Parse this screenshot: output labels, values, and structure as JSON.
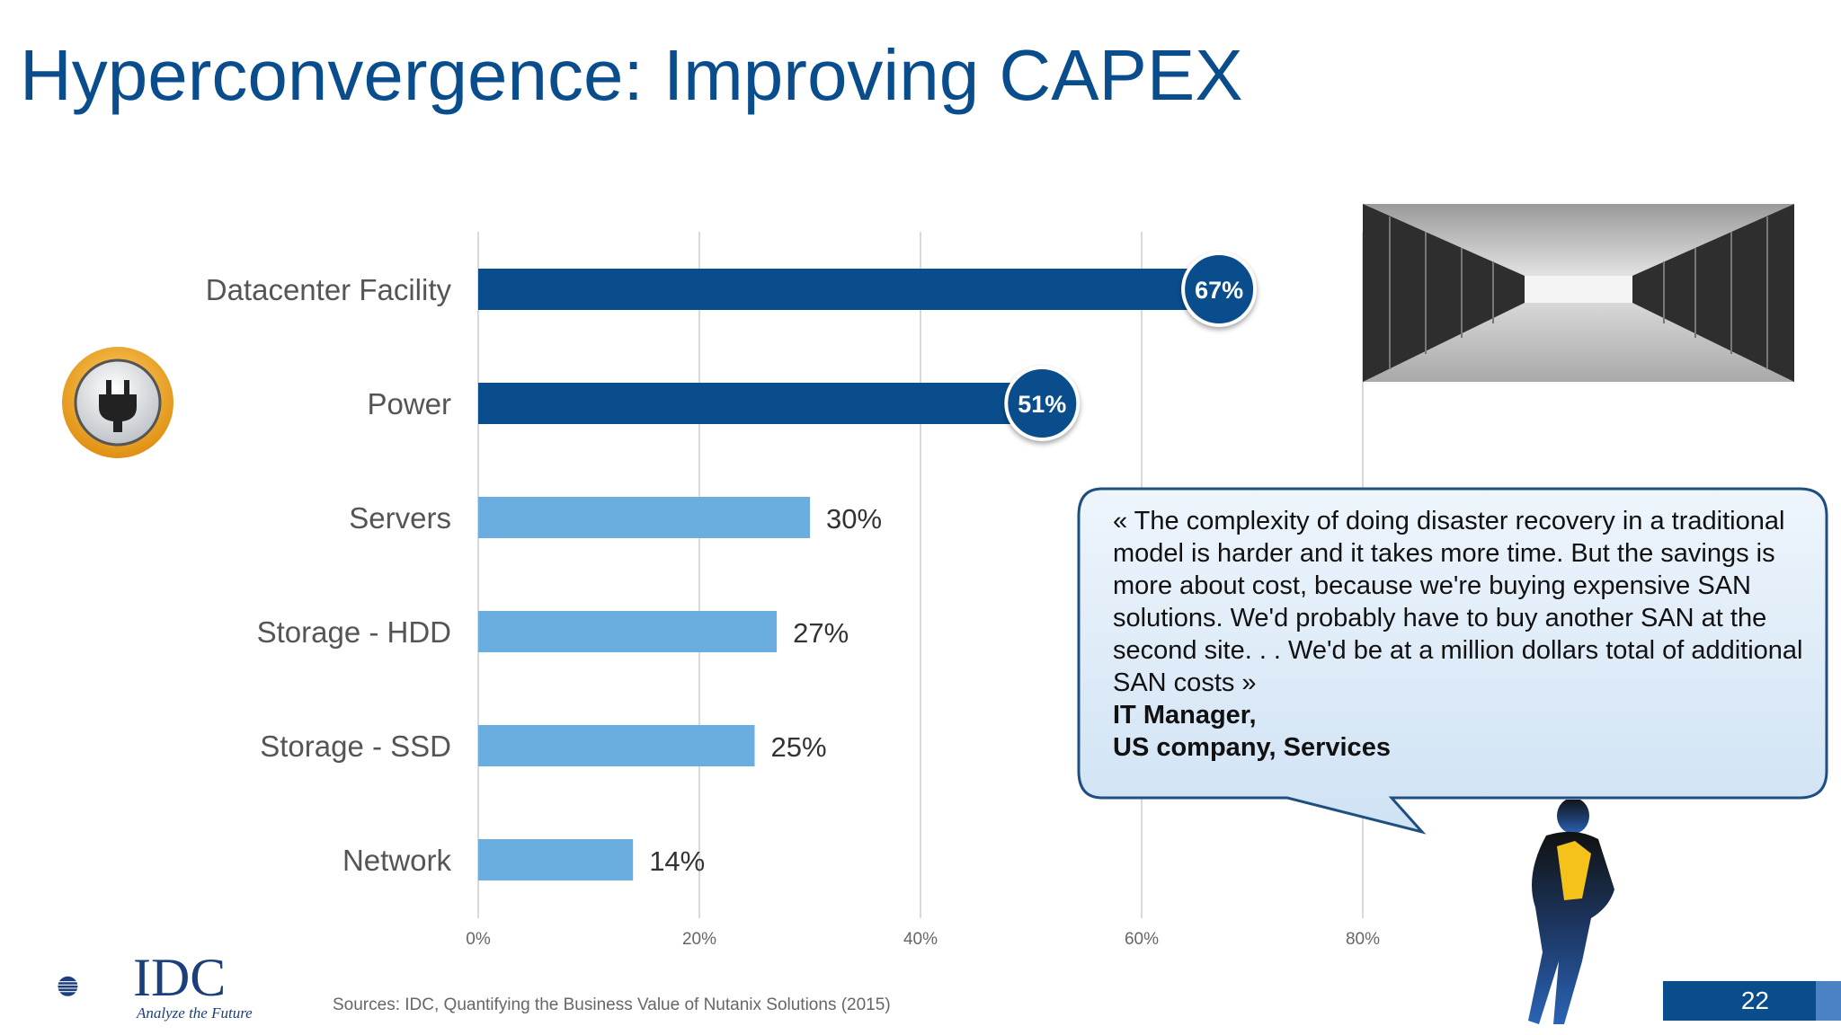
{
  "slide": {
    "title": "Hyperconvergence: Improving CAPEX",
    "page_number": "22",
    "sources": "Sources: IDC, Quantifying the Business Value of Nutanix Solutions (2015)"
  },
  "quote": {
    "text": "« The complexity of doing disaster recovery in a traditional model is harder and it takes more time. But the savings is more about cost, because we're buying expensive SAN solutions. We'd probably have to buy another SAN at the second site. . . We'd be at a million dollars total of additional SAN costs »",
    "author_line1": "IT Manager,",
    "author_line2": "US company, Services"
  },
  "logo": {
    "name": "IDC",
    "tagline": "Analyze the Future"
  },
  "icons": {
    "badge": "power-plug-icon",
    "photo": "datacenter-photo",
    "figure": "businessman-icon"
  },
  "colors": {
    "title": "#0a4d8c",
    "highlight_bar": "#0a4d8c",
    "normal_bar": "#6aaddf",
    "grid": "#d9d9d9"
  },
  "chart_data": {
    "type": "bar",
    "orientation": "horizontal",
    "categories": [
      "Datacenter Facility",
      "Power",
      "Servers",
      "Storage - HDD",
      "Storage - SSD",
      "Network"
    ],
    "values": [
      67,
      51,
      30,
      27,
      25,
      14
    ],
    "data_labels": [
      "67%",
      "51%",
      "30%",
      "27%",
      "25%",
      "14%"
    ],
    "highlighted": [
      true,
      true,
      false,
      false,
      false,
      false
    ],
    "xlim": [
      0,
      80
    ],
    "xticks": [
      0,
      20,
      40,
      60,
      80
    ],
    "xtick_labels": [
      "0%",
      "20%",
      "40%",
      "60%",
      "80%"
    ],
    "grid": true
  }
}
